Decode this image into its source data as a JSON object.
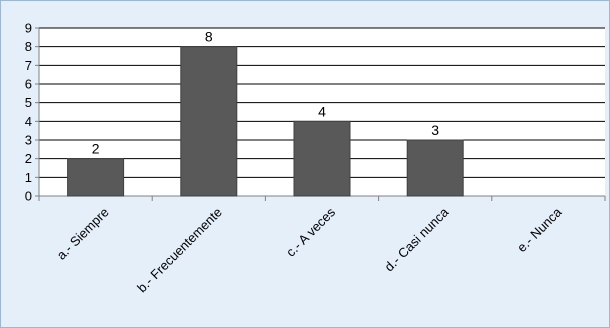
{
  "chart_data": {
    "type": "bar",
    "categories": [
      "a.- Siempre",
      "b.- Frecuentemente",
      "c.- A veces",
      "d.- Casi nunca",
      "e.- Nunca"
    ],
    "values": [
      2,
      8,
      4,
      3,
      0
    ],
    "data_labels": [
      "2",
      "8",
      "4",
      "3",
      ""
    ],
    "ylim": [
      0,
      9
    ],
    "yticks": [
      0,
      1,
      2,
      3,
      4,
      5,
      6,
      7,
      8,
      9
    ],
    "grid": true,
    "legend": "none",
    "title": "",
    "xlabel": "",
    "ylabel": "",
    "colors": {
      "bar": "#595959",
      "bar_edge": "#404040",
      "plot_background": "#ffffff",
      "chart_background": "#e5effa",
      "gridline": "#000000",
      "axis": "#808080",
      "border": "#9cb6d6"
    }
  }
}
